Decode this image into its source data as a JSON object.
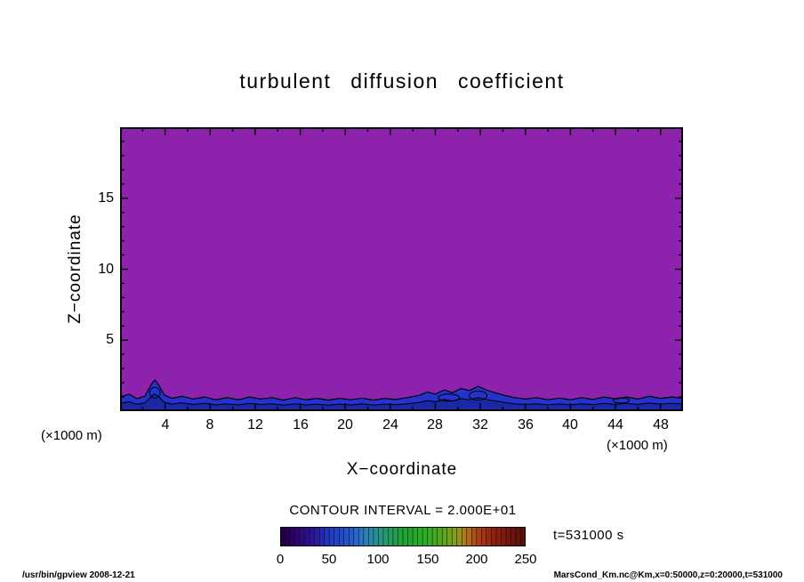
{
  "title": "turbulent diffusion coefficient",
  "axes": {
    "x_label": "X−coordinate",
    "y_label": "Z−coordinate",
    "x_unit": "(×1000 m)"
  },
  "colorbar": {
    "label": "CONTOUR INTERVAL = 2.000E+01",
    "ticks": [
      0,
      50,
      100,
      150,
      200,
      250
    ],
    "range": [
      0,
      250
    ],
    "segments": 50,
    "stops": [
      [
        0.0,
        "#20003a"
      ],
      [
        0.06,
        "#32006e"
      ],
      [
        0.13,
        "#2a1694"
      ],
      [
        0.2,
        "#2238c0"
      ],
      [
        0.28,
        "#2356cc"
      ],
      [
        0.34,
        "#2a7bc0"
      ],
      [
        0.4,
        "#27948c"
      ],
      [
        0.46,
        "#1f9e54"
      ],
      [
        0.52,
        "#22a52e"
      ],
      [
        0.6,
        "#2fae24"
      ],
      [
        0.66,
        "#56a81c"
      ],
      [
        0.72,
        "#8f9b16"
      ],
      [
        0.76,
        "#b0741a"
      ],
      [
        0.8,
        "#b04418"
      ],
      [
        0.86,
        "#962312"
      ],
      [
        0.93,
        "#77150c"
      ],
      [
        1.0,
        "#570d08"
      ]
    ]
  },
  "annotations": {
    "time": "t=531000 s"
  },
  "footer": {
    "left": "/usr/bin/gpview  2008-12-21",
    "right": "MarsCond_Km.nc@Km,x=0:50000,z=0:20000,t=531000"
  },
  "chart_data": {
    "type": "heatmap",
    "title": "turbulent diffusion coefficient",
    "xlabel": "X-coordinate (×1000 m)",
    "ylabel": "Z-coordinate (×1000 m)",
    "xlim": [
      0,
      50
    ],
    "ylim": [
      0,
      20
    ],
    "x_ticks": [
      4,
      8,
      12,
      16,
      20,
      24,
      28,
      32,
      36,
      40,
      44,
      48
    ],
    "y_ticks": [
      5,
      10,
      15
    ],
    "contour_interval": 20,
    "colorbar_ticks": [
      0,
      50,
      100,
      150,
      200,
      250
    ],
    "time_seconds": 531000,
    "colors": {
      "interior": "#8d22ad",
      "band": "#2433cc",
      "band_dark": "#1c27a4"
    },
    "description": "Nearly uniform field (purple tone) over 0≤x≤50, 0≤z≤20 (×1000 m), with a shallow boundary layer (blue tones, black contour lines) below z≈2; plume-like bumps near x≈3 and x≈28–33.",
    "boundary": [
      [
        0,
        1.0
      ],
      [
        0.8,
        1.2
      ],
      [
        1.5,
        0.88
      ],
      [
        2.2,
        1.05
      ],
      [
        2.8,
        1.9
      ],
      [
        3.1,
        2.2
      ],
      [
        3.5,
        1.75
      ],
      [
        3.9,
        1.15
      ],
      [
        4.6,
        0.9
      ],
      [
        5.5,
        1.05
      ],
      [
        6.5,
        0.85
      ],
      [
        7.5,
        1.0
      ],
      [
        8.5,
        0.8
      ],
      [
        9.5,
        0.95
      ],
      [
        10.5,
        0.8
      ],
      [
        11.5,
        1.0
      ],
      [
        12.5,
        0.85
      ],
      [
        13.5,
        0.95
      ],
      [
        14.5,
        0.78
      ],
      [
        15.5,
        0.95
      ],
      [
        16.5,
        0.8
      ],
      [
        17.5,
        0.9
      ],
      [
        18.5,
        0.78
      ],
      [
        19.5,
        0.9
      ],
      [
        20.5,
        0.8
      ],
      [
        21.5,
        0.92
      ],
      [
        22.5,
        0.78
      ],
      [
        23.5,
        0.9
      ],
      [
        24.5,
        0.82
      ],
      [
        25.5,
        0.95
      ],
      [
        26.5,
        1.1
      ],
      [
        27.3,
        1.35
      ],
      [
        28,
        1.2
      ],
      [
        28.8,
        1.5
      ],
      [
        29.5,
        1.3
      ],
      [
        30.3,
        1.6
      ],
      [
        31,
        1.45
      ],
      [
        31.8,
        1.75
      ],
      [
        32.5,
        1.5
      ],
      [
        33.3,
        1.3
      ],
      [
        34.2,
        1.1
      ],
      [
        35,
        0.95
      ],
      [
        36,
        0.85
      ],
      [
        37,
        0.95
      ],
      [
        38,
        0.8
      ],
      [
        39,
        0.92
      ],
      [
        40,
        0.8
      ],
      [
        41,
        0.95
      ],
      [
        42,
        0.82
      ],
      [
        43,
        1.0
      ],
      [
        44,
        0.85
      ],
      [
        45,
        1.0
      ],
      [
        46,
        0.85
      ],
      [
        47,
        1.05
      ],
      [
        48,
        0.9
      ],
      [
        49,
        1.0
      ],
      [
        50,
        0.9
      ]
    ],
    "loops": [
      [
        3.1,
        1.3,
        6,
        6
      ],
      [
        29.2,
        0.95,
        12,
        4
      ],
      [
        31.8,
        1.1,
        10,
        5
      ],
      [
        44.5,
        0.75,
        9,
        3
      ]
    ]
  }
}
